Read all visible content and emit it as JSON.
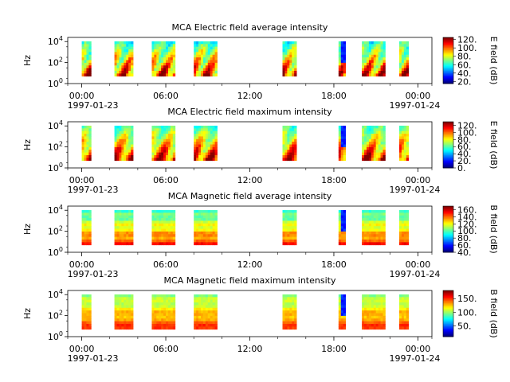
{
  "figure": {
    "background": "#ffffff"
  },
  "chart_data": [
    {
      "type": "heatmap",
      "title": "MCA  Electric field average intensity",
      "ylabel": "Hz",
      "y_ticks": [
        "10^4",
        "10^2",
        "10^0"
      ],
      "x_ticks": [
        "00:00",
        "06:00",
        "12:00",
        "18:00",
        "00:00"
      ],
      "x_date_start": "1997-01-23",
      "x_date_end": "1997-01-24",
      "colorbar_label": "E field (dB)",
      "colorbar_ticks": [
        "120.",
        "100.",
        "80.",
        "60.",
        "40.",
        "20."
      ],
      "colorbar_range": [
        15,
        125
      ]
    },
    {
      "type": "heatmap",
      "title": "MCA  Electric field maximum intensity",
      "ylabel": "Hz",
      "y_ticks": [
        "10^4",
        "10^2",
        "10^0"
      ],
      "x_ticks": [
        "00:00",
        "06:00",
        "12:00",
        "18:00",
        "00:00"
      ],
      "x_date_start": "1997-01-23",
      "x_date_end": "1997-01-24",
      "colorbar_label": "E field (dB)",
      "colorbar_ticks": [
        "120.",
        "100.",
        "80.",
        "60.",
        "40.",
        "20.",
        "0."
      ],
      "colorbar_range": [
        0,
        130
      ]
    },
    {
      "type": "heatmap",
      "title": "MCA  Magnetic field average intensity",
      "ylabel": "Hz",
      "y_ticks": [
        "10^4",
        "10^2",
        "10^0"
      ],
      "x_ticks": [
        "00:00",
        "06:00",
        "12:00",
        "18:00",
        "00:00"
      ],
      "x_date_start": "1997-01-23",
      "x_date_end": "1997-01-24",
      "colorbar_label": "B field (dB)",
      "colorbar_ticks": [
        "160.",
        "140.",
        "120.",
        "100.",
        "80.",
        "60.",
        "40."
      ],
      "colorbar_range": [
        40,
        170
      ]
    },
    {
      "type": "heatmap",
      "title": "MCA  Magnetic field maximum intensity",
      "ylabel": "Hz",
      "y_ticks": [
        "10^4",
        "10^2",
        "10^0"
      ],
      "x_ticks": [
        "00:00",
        "06:00",
        "12:00",
        "18:00",
        "00:00"
      ],
      "x_date_start": "1997-01-23",
      "x_date_end": "1997-01-24",
      "colorbar_label": "B field (dB)",
      "colorbar_ticks": [
        "150.",
        "100.",
        "50."
      ],
      "colorbar_range": [
        10,
        180
      ]
    }
  ],
  "time_axis": {
    "start": "1997-01-22T23:00",
    "end": "1997-01-24T01:00",
    "data_segments": [
      [
        "1997-01-23T00:00",
        "1997-01-23T00:40"
      ],
      [
        "1997-01-23T02:20",
        "1997-01-23T03:40"
      ],
      [
        "1997-01-23T05:00",
        "1997-01-23T06:40"
      ],
      [
        "1997-01-23T08:00",
        "1997-01-23T09:40"
      ],
      [
        "1997-01-23T14:20",
        "1997-01-23T15:20"
      ],
      [
        "1997-01-23T18:20",
        "1997-01-23T18:50"
      ],
      [
        "1997-01-23T20:00",
        "1997-01-23T21:40"
      ],
      [
        "1997-01-23T22:40",
        "1997-01-23T23:20"
      ]
    ]
  }
}
